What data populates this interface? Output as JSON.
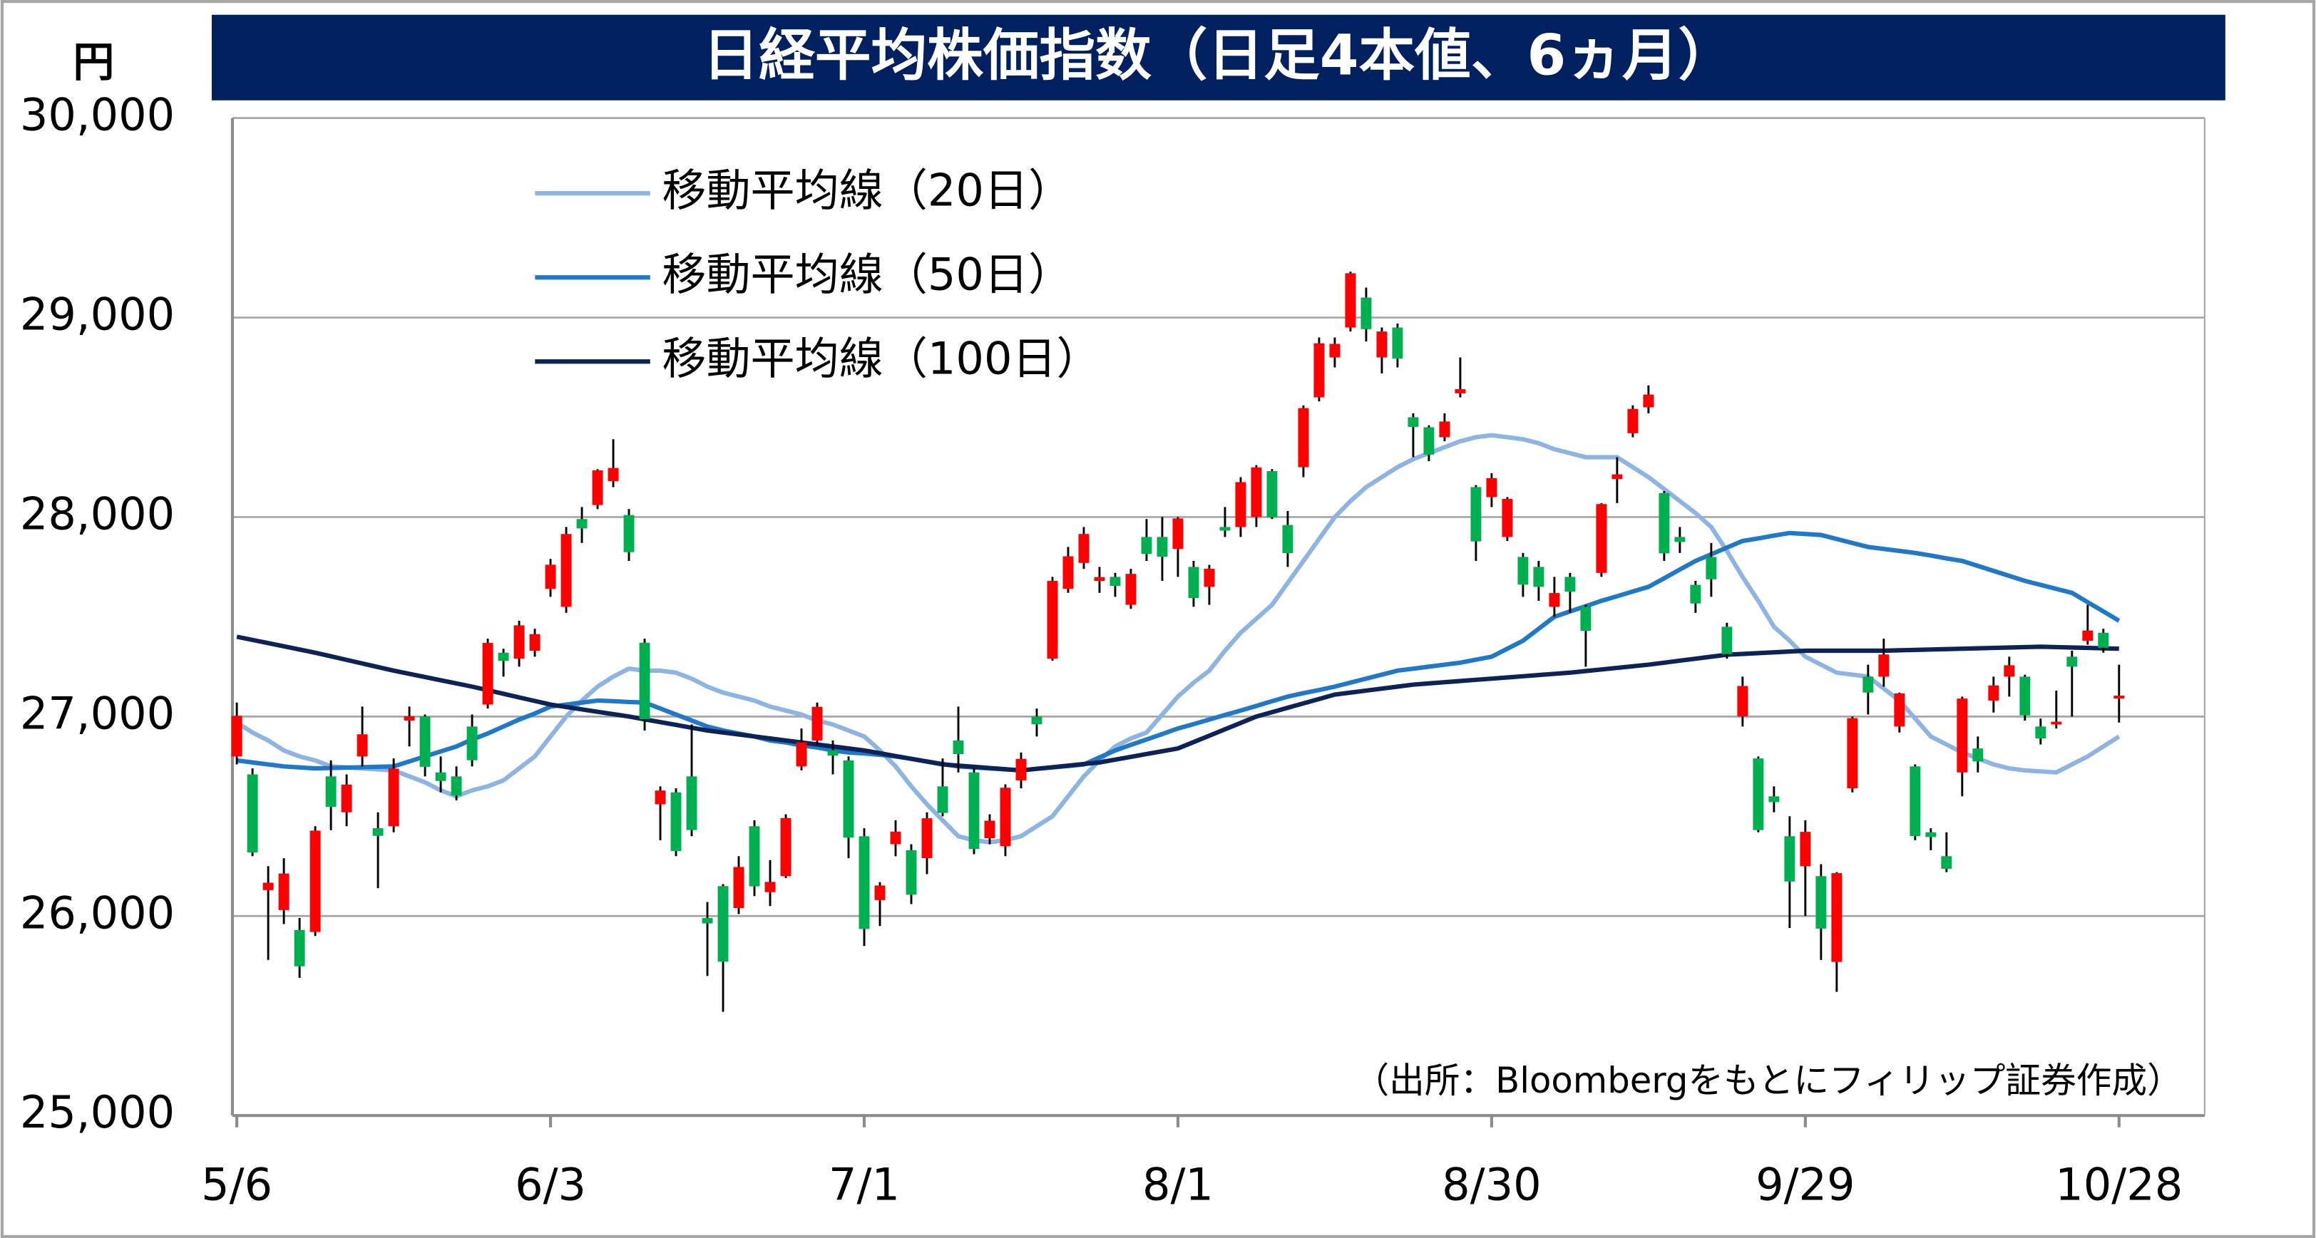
{
  "chart_data": {
    "type": "candlestick",
    "title": "日経平均株価指数（日足4本値、6ヵ月）",
    "y_unit": "円",
    "source": "（出所：Bloombergをもとにフィリップ証券作成）",
    "ylim": [
      25000,
      30000
    ],
    "yticks": [
      {
        "value": 25000,
        "label": "25,000"
      },
      {
        "value": 26000,
        "label": "26,000"
      },
      {
        "value": 27000,
        "label": "27,000"
      },
      {
        "value": 28000,
        "label": "28,000"
      },
      {
        "value": 29000,
        "label": "29,000"
      },
      {
        "value": 30000,
        "label": "30,000"
      }
    ],
    "grid": true,
    "legend": "upper left",
    "up_color": "#ff0000",
    "down_color": "#00b050",
    "categories": [
      "5/6",
      null,
      null,
      null,
      null,
      null,
      null,
      null,
      null,
      null,
      null,
      null,
      null,
      null,
      null,
      null,
      null,
      null,
      null,
      null,
      "6/3",
      null,
      null,
      null,
      null,
      null,
      null,
      null,
      null,
      null,
      null,
      null,
      null,
      null,
      null,
      null,
      null,
      null,
      null,
      null,
      "7/1",
      null,
      null,
      null,
      null,
      null,
      null,
      null,
      null,
      null,
      null,
      null,
      null,
      null,
      null,
      null,
      null,
      null,
      null,
      null,
      "8/1",
      null,
      null,
      null,
      null,
      null,
      null,
      null,
      null,
      null,
      null,
      null,
      null,
      null,
      null,
      null,
      null,
      null,
      null,
      null,
      "8/30",
      null,
      null,
      null,
      null,
      null,
      null,
      null,
      null,
      null,
      null,
      null,
      null,
      null,
      null,
      null,
      null,
      null,
      null,
      null,
      "9/29",
      null,
      null,
      null,
      null,
      null,
      null,
      null,
      null,
      null,
      null,
      null,
      null,
      null,
      null,
      null,
      null,
      null,
      null,
      null,
      "10/28"
    ],
    "open": [
      26800,
      26710,
      26130,
      26030,
      25930,
      25920,
      26700,
      26520,
      26800,
      26440,
      26450,
      26980,
      27000,
      26720,
      26700,
      26950,
      27060,
      27320,
      27290,
      27330,
      27640,
      27550,
      27990,
      28060,
      28180,
      28010,
      27370,
      26560,
      26620,
      26700,
      25990,
      26150,
      26040,
      26450,
      26120,
      26200,
      26750,
      26880,
      26830,
      26780,
      26400,
      26080,
      26360,
      26330,
      26290,
      26650,
      26880,
      26720,
      26390,
      26350,
      26680,
      27000,
      27290,
      27640,
      27770,
      27680,
      27700,
      27560,
      27900,
      27900,
      27840,
      27750,
      27650,
      27950,
      27950,
      28000,
      28230,
      27960,
      28250,
      28600,
      28800,
      28950,
      29100,
      28800,
      28950,
      28500,
      28450,
      28400,
      28620,
      28150,
      28100,
      27900,
      27800,
      27750,
      27550,
      27700,
      27550,
      27720,
      28190,
      28420,
      28550,
      28120,
      27900,
      27660,
      27800,
      27450,
      27000,
      26790,
      26600,
      26400,
      26250,
      26200,
      25770,
      26640,
      27200,
      27200,
      26950,
      26750,
      26420,
      26300,
      26720,
      26840,
      27080,
      27200,
      27200,
      26950,
      26960,
      27300,
      27380,
      27420,
      27090
    ],
    "high": [
      27070,
      26740,
      26250,
      26290,
      25990,
      26450,
      26780,
      26710,
      27050,
      26520,
      26790,
      27050,
      27010,
      26800,
      26750,
      27010,
      27390,
      27340,
      27480,
      27440,
      27790,
      27950,
      28050,
      28240,
      28390,
      28040,
      27390,
      26650,
      26640,
      26960,
      26070,
      26160,
      26300,
      26480,
      26280,
      26510,
      26940,
      27070,
      26880,
      26800,
      26440,
      26170,
      26480,
      26360,
      26520,
      26790,
      27050,
      26740,
      26510,
      26660,
      26820,
      27040,
      27700,
      27850,
      27950,
      27750,
      27720,
      27740,
      27990,
      28000,
      28000,
      27780,
      27760,
      28050,
      28200,
      28260,
      28240,
      28030,
      28560,
      28900,
      28900,
      29230,
      29150,
      28950,
      28970,
      28520,
      28460,
      28520,
      28800,
      28160,
      28220,
      28100,
      27820,
      27780,
      27700,
      27720,
      27560,
      28070,
      28300,
      28560,
      28660,
      28130,
      27950,
      27680,
      27870,
      27470,
      27200,
      26800,
      26650,
      26500,
      26480,
      26260,
      26220,
      27000,
      27260,
      27390,
      27120,
      26760,
      26440,
      26420,
      27100,
      26900,
      27200,
      27300,
      27210,
      26990,
      27130,
      27330,
      27560,
      27440,
      27260
    ],
    "low": [
      26760,
      26300,
      25780,
      25960,
      25690,
      25900,
      26430,
      26450,
      26750,
      26140,
      26420,
      26850,
      26700,
      26620,
      26580,
      26750,
      27040,
      27200,
      27250,
      27300,
      27600,
      27520,
      27870,
      28040,
      28150,
      27780,
      26930,
      26380,
      26300,
      26400,
      25700,
      25520,
      26010,
      26100,
      26050,
      26190,
      26730,
      26860,
      26710,
      26290,
      25850,
      25950,
      26300,
      26060,
      26210,
      26500,
      26720,
      26310,
      26360,
      26300,
      26640,
      26900,
      27280,
      27620,
      27740,
      27620,
      27600,
      27540,
      27780,
      27680,
      27700,
      27550,
      27560,
      27900,
      27900,
      27950,
      27990,
      27750,
      28200,
      28580,
      28750,
      28930,
      28880,
      28720,
      28750,
      28300,
      28280,
      28380,
      28600,
      27780,
      28050,
      27880,
      27600,
      27580,
      27500,
      27520,
      27250,
      27700,
      28070,
      28400,
      28520,
      27780,
      27820,
      27520,
      27600,
      27290,
      26950,
      26420,
      26520,
      25940,
      26000,
      25780,
      25620,
      26620,
      27010,
      27150,
      26920,
      26380,
      26330,
      26220,
      26600,
      26720,
      27020,
      27100,
      26980,
      26860,
      26940,
      27000,
      27360,
      27320,
      26970
    ],
    "close": [
      27003,
      26319,
      26167,
      26213,
      25748,
      26428,
      26547,
      26659,
      26911,
      26402,
      26739,
      27001,
      26748,
      26677,
      26604,
      26781,
      27369,
      27279,
      27457,
      27413,
      27761,
      27915,
      27943,
      28234,
      28246,
      27824,
      26987,
      26629,
      26326,
      26431,
      25963,
      25771,
      26246,
      26149,
      26171,
      26491,
      26871,
      27049,
      26804,
      26393,
      25935,
      26153,
      26423,
      26107,
      26490,
      26517,
      26812,
      26336,
      26478,
      26643,
      26788,
      26961,
      27680,
      27803,
      27915,
      27699,
      27655,
      27715,
      27815,
      27801,
      27993,
      27594,
      27741,
      27932,
      28175,
      28249,
      27999,
      27819,
      28546,
      28871,
      28868,
      29222,
      28942,
      28930,
      28794,
      28452,
      28313,
      28479,
      28641,
      27878,
      28195,
      28091,
      27661,
      27650,
      27619,
      27626,
      27430,
      28065,
      28214,
      28542,
      28614,
      27818,
      27875,
      27567,
      27688,
      27313,
      27153,
      26431,
      26571,
      26173,
      26422,
      25937,
      26215,
      26992,
      27120,
      27311,
      27116,
      26401,
      26396,
      26237,
      27090,
      26775,
      27156,
      27257,
      27006,
      26890,
      26974,
      27250,
      27431,
      27345,
      27105
    ],
    "lines": [
      {
        "name": "移動平均線（20日）",
        "color": "#8eb4e3",
        "values": [
          26970,
          26920,
          26880,
          26830,
          26800,
          26780,
          26750,
          26745,
          26740,
          26735,
          26730,
          26700,
          26670,
          26630,
          26600,
          26630,
          26650,
          26680,
          26740,
          26800,
          26900,
          27000,
          27080,
          27150,
          27200,
          27240,
          27230,
          27230,
          27220,
          27190,
          27150,
          27120,
          27100,
          27080,
          27050,
          27030,
          27010,
          26980,
          26960,
          26930,
          26900,
          26830,
          26750,
          26650,
          26560,
          26480,
          26400,
          26380,
          26370,
          26380,
          26400,
          26450,
          26500,
          26600,
          26700,
          26780,
          26850,
          26890,
          26920,
          27010,
          27100,
          27170,
          27230,
          27330,
          27420,
          27490,
          27560,
          27670,
          27780,
          27890,
          28000,
          28080,
          28150,
          28200,
          28250,
          28290,
          28320,
          28350,
          28380,
          28400,
          28410,
          28400,
          28390,
          28370,
          28340,
          28320,
          28300,
          28300,
          28300,
          28250,
          28200,
          28140,
          28080,
          28020,
          27950,
          27830,
          27700,
          27580,
          27450,
          27380,
          27300,
          27260,
          27220,
          27210,
          27200,
          27140,
          27080,
          26990,
          26900,
          26860,
          26820,
          26790,
          26760,
          26740,
          26730,
          26725,
          26720,
          26760,
          26800,
          26850,
          26900
        ]
      },
      {
        "name": "移動平均線（50日）",
        "color": "#1f78c8",
        "values": [
          26780,
          26770,
          26760,
          26750,
          26745,
          26740,
          26742,
          26744,
          26746,
          26748,
          26750,
          26775,
          26800,
          26825,
          26850,
          26885,
          26915,
          26950,
          26985,
          27015,
          27050,
          27060,
          27070,
          27080,
          27077,
          27073,
          27070,
          27040,
          27010,
          26980,
          26950,
          26930,
          26915,
          26900,
          26880,
          26870,
          26855,
          26845,
          26830,
          26820,
          26815,
          26808,
          26800,
          26788,
          26775,
          26762,
          26750,
          26745,
          26740,
          26735,
          26730,
          26738,
          26745,
          26752,
          26760,
          26795,
          26830,
          26858,
          26885,
          26912,
          26940,
          26962,
          26985,
          27008,
          27030,
          27053,
          27077,
          27100,
          27117,
          27133,
          27150,
          27170,
          27190,
          27210,
          27230,
          27240,
          27250,
          27260,
          27270,
          27285,
          27300,
          27340,
          27380,
          27440,
          27500,
          27527,
          27553,
          27580,
          27603,
          27627,
          27650,
          27693,
          27737,
          27780,
          27813,
          27847,
          27880,
          27893,
          27907,
          27920,
          27915,
          27910,
          27890,
          27870,
          27850,
          27840,
          27830,
          27820,
          27807,
          27793,
          27780,
          27755,
          27730,
          27705,
          27680,
          27660,
          27640,
          27620,
          27573,
          27527,
          27480
        ]
      },
      {
        "name": "移動平均線（100日）",
        "color": "#0d2257",
        "values": [
          27400,
          27384,
          27368,
          27352,
          27336,
          27320,
          27302,
          27284,
          27266,
          27248,
          27230,
          27214,
          27198,
          27182,
          27166,
          27150,
          27132,
          27114,
          27096,
          27078,
          27060,
          27048,
          27036,
          27024,
          27012,
          27000,
          26986,
          26972,
          26958,
          26944,
          26930,
          26920,
          26910,
          26900,
          26890,
          26880,
          26870,
          26860,
          26850,
          26840,
          26830,
          26816,
          26802,
          26788,
          26774,
          26760,
          26754,
          26748,
          26742,
          26736,
          26730,
          26738,
          26746,
          26754,
          26762,
          26770,
          26784,
          26798,
          26812,
          26826,
          26840,
          26872,
          26904,
          26936,
          26968,
          27000,
          27022,
          27044,
          27066,
          27088,
          27110,
          27120,
          27130,
          27140,
          27150,
          27160,
          27166,
          27172,
          27178,
          27184,
          27190,
          27196,
          27202,
          27208,
          27214,
          27220,
          27228,
          27236,
          27244,
          27252,
          27260,
          27270,
          27280,
          27290,
          27300,
          27310,
          27314,
          27318,
          27322,
          27326,
          27330,
          27330,
          27330,
          27330,
          27330,
          27330,
          27332,
          27334,
          27336,
          27338,
          27340,
          27342,
          27344,
          27346,
          27348,
          27350,
          27348,
          27346,
          27344,
          27342,
          27340
        ]
      }
    ]
  }
}
